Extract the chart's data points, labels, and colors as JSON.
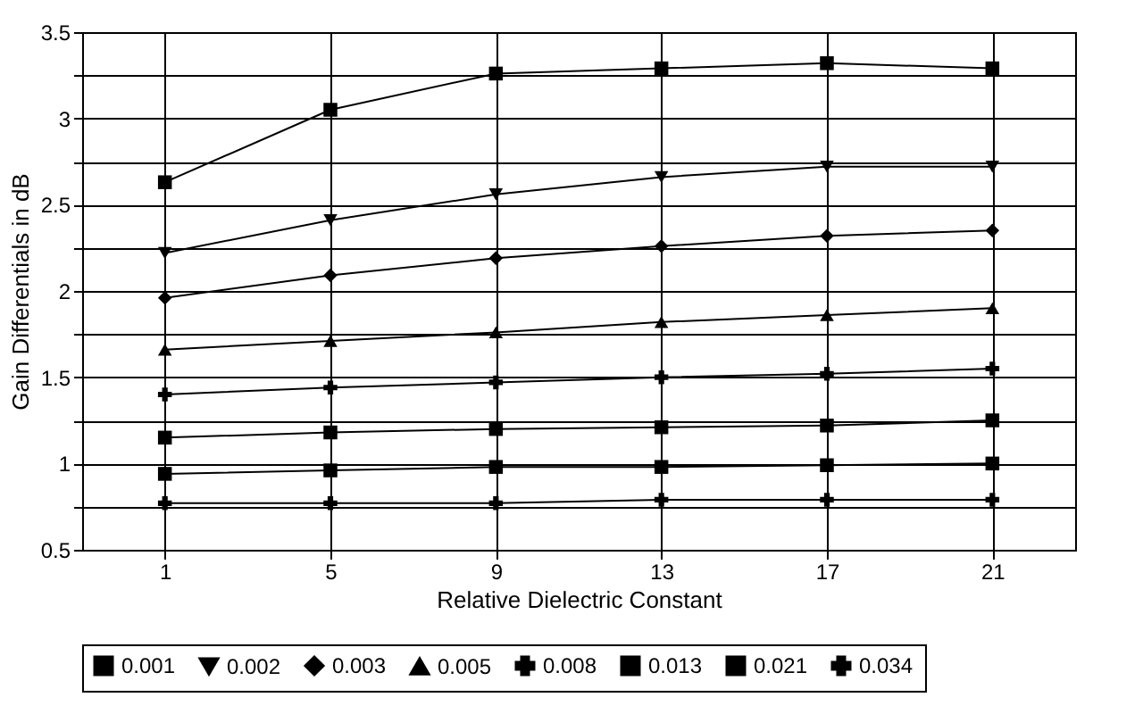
{
  "chart_data": {
    "type": "line",
    "xlabel": "Relative Dielectric Constant",
    "ylabel": "Gain Differentials in dB",
    "categories": [
      "1",
      "5",
      "9",
      "13",
      "17",
      "21"
    ],
    "series": [
      {
        "name": "0.001",
        "color": "#000000",
        "marker": "square",
        "values": [
          2.63,
          3.05,
          3.26,
          3.29,
          3.32,
          3.29
        ]
      },
      {
        "name": "0.002",
        "color": "#000000",
        "marker": "triangle-down",
        "values": [
          2.22,
          2.41,
          2.56,
          2.66,
          2.72,
          2.72
        ]
      },
      {
        "name": "0.003",
        "color": "#000000",
        "marker": "diamond",
        "values": [
          1.96,
          2.09,
          2.19,
          2.26,
          2.32,
          2.35
        ]
      },
      {
        "name": "0.005",
        "color": "#000000",
        "marker": "triangle",
        "values": [
          1.66,
          1.71,
          1.76,
          1.82,
          1.86,
          1.9
        ]
      },
      {
        "name": "0.008",
        "color": "#000000",
        "marker": "cross",
        "values": [
          1.4,
          1.44,
          1.47,
          1.5,
          1.52,
          1.55
        ]
      },
      {
        "name": "0.013",
        "color": "#000000",
        "marker": "square",
        "values": [
          1.15,
          1.18,
          1.2,
          1.21,
          1.22,
          1.25
        ]
      },
      {
        "name": "0.021",
        "color": "#000000",
        "marker": "square",
        "values": [
          0.94,
          0.96,
          0.98,
          0.98,
          0.99,
          1.0
        ]
      },
      {
        "name": "0.034",
        "color": "#000000",
        "marker": "cross",
        "values": [
          0.77,
          0.77,
          0.77,
          0.79,
          0.79,
          0.79
        ]
      }
    ],
    "ylim": [
      0.5,
      3.5
    ],
    "yticks": [
      0.5,
      {
        "value": 0.75,
        "label": null
      },
      1,
      {
        "value": 1.25,
        "label": null
      },
      1.5,
      {
        "value": 1.75,
        "label": null
      },
      2,
      {
        "value": 2.25,
        "label": null
      },
      2.5,
      {
        "value": 2.75,
        "label": null
      },
      3,
      {
        "value": 3.25,
        "label": null
      },
      3.5
    ],
    "grid": true,
    "legend": "bottom",
    "line_style": "solid"
  }
}
